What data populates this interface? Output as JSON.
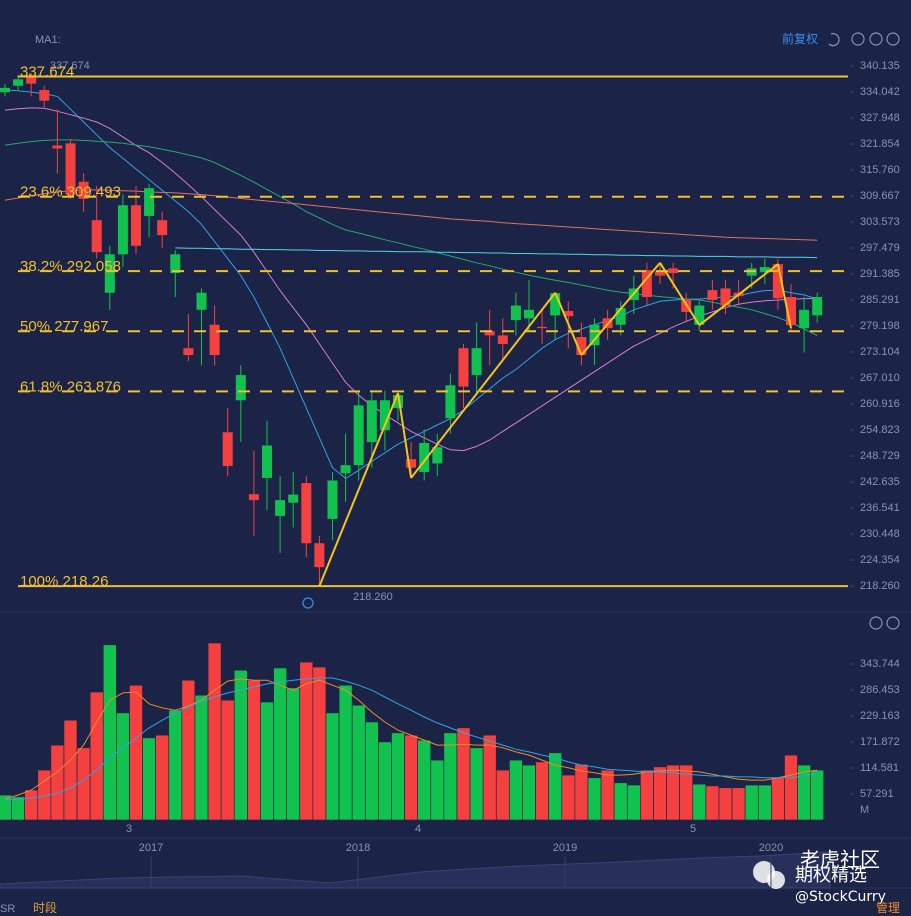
{
  "header": {
    "indicator": "MA1:",
    "price_ref": "337.674",
    "adjust": "前复权"
  },
  "footer": {
    "left": "SR",
    "session": "时段",
    "manage": "管理"
  },
  "watermark": {
    "line1": "老虎社区",
    "line2": "期权精选",
    "line3": "@StockCurry"
  },
  "x_axis": {
    "months": [
      "3",
      "4",
      "5"
    ],
    "years": [
      "2017",
      "2018",
      "2019",
      "2020"
    ]
  },
  "chart_data": [
    {
      "type": "candlestick",
      "up_color": "#12c24f",
      "down_color": "#f4413f",
      "ylim": [
        215,
        342.7
      ],
      "yticks": [
        340.135,
        334.042,
        327.948,
        321.854,
        {
          "value": 315.76,
          "label": "315.760"
        },
        309.667,
        303.573,
        297.479,
        291.385,
        285.291,
        279.198,
        273.104,
        {
          "value": 267.01,
          "label": "267.010"
        },
        260.916,
        254.823,
        248.729,
        242.635,
        236.541,
        230.448,
        224.354,
        {
          "value": 218.26,
          "label": "218.260"
        }
      ],
      "grid": false,
      "open": [
        334,
        335.5,
        337.6,
        334.5,
        321.5,
        322,
        313,
        304,
        287,
        296,
        307.5,
        305,
        304,
        291.6,
        274,
        283,
        279.5,
        254.3,
        261.8,
        239.8,
        243.6,
        234.7,
        237.8,
        242.4,
        228.3,
        234,
        244.7,
        246.6,
        252,
        254.8,
        260,
        248,
        245,
        247,
        257.6,
        274,
        267.7,
        278,
        277,
        280.6,
        281,
        279,
        281.7,
        282.7,
        276.6,
        274.7,
        281,
        279.5,
        285.3,
        292.3,
        292,
        292.7,
        285.3,
        279.5,
        287.6,
        288,
        287,
        291,
        291.8,
        293.7,
        286,
        278.7,
        281.7
      ],
      "high": [
        336,
        338,
        338.5,
        335.5,
        330,
        323,
        315,
        312,
        298,
        310,
        312,
        312.5,
        306,
        297,
        282,
        288,
        284,
        260,
        270,
        250,
        257,
        244,
        245,
        244,
        230,
        245,
        254,
        264,
        264,
        264,
        263.5,
        252,
        255,
        254,
        268,
        275,
        280,
        283,
        281,
        287,
        290,
        283,
        287,
        285,
        280,
        281,
        283,
        285,
        291,
        294,
        294,
        294,
        287,
        285,
        290,
        290,
        290,
        294,
        295,
        295,
        289,
        286,
        287
      ],
      "low": [
        333,
        334.5,
        333,
        330.5,
        315,
        309,
        306,
        295,
        283,
        293,
        296,
        300,
        297.5,
        286,
        271,
        270,
        270,
        244,
        252,
        230,
        236,
        226,
        232,
        225,
        218.26,
        229,
        238,
        243,
        246,
        250,
        257,
        243.6,
        243,
        244,
        254,
        260,
        263,
        270,
        271,
        277,
        278,
        275,
        276,
        274,
        270,
        270,
        276,
        277,
        282,
        284,
        289,
        288,
        280,
        278,
        283,
        282,
        284,
        288,
        289,
        283,
        278,
        273,
        280
      ],
      "close": [
        335,
        337,
        336,
        332,
        320.8,
        310,
        309,
        296.5,
        296,
        307.5,
        298,
        311.5,
        300.5,
        296,
        272.4,
        287,
        272.4,
        246.4,
        267.7,
        238.4,
        251.2,
        238.4,
        239.7,
        228.3,
        222.7,
        243,
        246.6,
        260.6,
        261.8,
        261.8,
        263,
        246,
        251.8,
        250.8,
        265.3,
        265,
        274,
        277,
        275,
        284,
        283,
        278.7,
        286.9,
        281.5,
        272.4,
        279.5,
        278.7,
        283.4,
        288,
        286,
        291,
        291.6,
        282.5,
        284,
        285.3,
        284,
        286.2,
        292.7,
        293,
        285.7,
        279.4,
        283,
        286
      ],
      "ma_lines": [
        {
          "color": "#2fa4e7",
          "values": [
            334.5,
            334.3,
            334,
            333.6,
            333,
            330,
            327,
            324,
            321,
            318.5,
            316,
            313.5,
            311,
            308.5,
            306,
            303,
            299,
            295,
            291,
            286,
            280,
            274,
            267,
            260,
            253,
            246,
            243.5,
            245.4,
            247.5,
            249.5,
            251.5,
            253,
            254.5,
            256,
            257.5,
            259.5,
            262,
            264.5,
            267,
            269,
            271.5,
            274,
            276,
            277.5,
            278.5,
            279.5,
            280.5,
            281.5,
            283,
            284,
            285,
            285.3,
            285.5,
            285.5,
            285.8,
            286,
            286.3,
            287,
            287.5,
            287.6,
            287,
            286.5,
            285.5
          ]
        },
        {
          "color": "#d77fd0",
          "values": [
            329.8,
            330.1,
            330.3,
            330.2,
            329.5,
            328.7,
            327.9,
            327,
            325.5,
            323.5,
            321.5,
            319.8,
            317.5,
            315,
            312.3,
            309.5,
            306.5,
            303.5,
            300.5,
            296.5,
            292,
            287.5,
            283.5,
            279.5,
            275,
            270.5,
            266,
            263,
            260.5,
            258.5,
            256.5,
            254.5,
            253,
            251.5,
            250.2,
            250,
            251,
            252.5,
            254.5,
            256.5,
            258.5,
            260.5,
            262.5,
            264.5,
            266.5,
            268.5,
            270.5,
            272.5,
            274.5,
            276,
            277.5,
            279,
            280.3,
            281.5,
            282.5,
            283.5,
            284.3,
            284.8,
            285.1,
            285.3,
            285.5,
            285.6,
            285.7
          ]
        },
        {
          "color": "#27a86c",
          "values": [
            321.6,
            322,
            322.4,
            322.7,
            322.8,
            322.8,
            322.7,
            322.5,
            322.3,
            322,
            321.6,
            321.2,
            320.6,
            320,
            319.3,
            318.6,
            317.5,
            316,
            314.5,
            312.9,
            311.2,
            309.5,
            307.8,
            306,
            304.5,
            303,
            301.7,
            301,
            300.2,
            299.4,
            298.7,
            297.9,
            297.2,
            296.4,
            295.6,
            294.8,
            294,
            293.3,
            292.5,
            291.8,
            291.1,
            290.5,
            289.9,
            289.4,
            288.8,
            288.2,
            287.6,
            287.1,
            286.8,
            286.4,
            286.1,
            285.8,
            285.5,
            285.3,
            284.8,
            284.2,
            283.6,
            283,
            282.1,
            281.2,
            280,
            278.5,
            277
          ]
        },
        {
          "color": "#e07064",
          "values": [
            308.7,
            309.2,
            309.7,
            310.2,
            310.6,
            310.9,
            311.1,
            311.1,
            311,
            310.9,
            310.8,
            310.6,
            310.5,
            310.4,
            310.2,
            310,
            309.7,
            309.4,
            309.1,
            308.8,
            308.5,
            308.2,
            307.9,
            307.6,
            307.3,
            307,
            306.7,
            306.4,
            306.1,
            305.8,
            305.5,
            305.2,
            304.9,
            304.6,
            304.3,
            304.1,
            303.9,
            303.7,
            303.4,
            303.2,
            303,
            302.8,
            302.6,
            302.4,
            302.2,
            302,
            301.8,
            301.6,
            301.4,
            301.2,
            301,
            300.8,
            300.6,
            300.4,
            300.2,
            300,
            299.9,
            299.8,
            299.7,
            299.6,
            299.5,
            299.4,
            299.3
          ]
        },
        {
          "color": "#4fd6e8",
          "values": [
            null,
            null,
            null,
            null,
            null,
            null,
            null,
            null,
            null,
            null,
            null,
            null,
            null,
            297.5,
            297.4,
            297.4,
            297.3,
            297.3,
            297.2,
            297.2,
            297.1,
            297.1,
            297,
            297,
            296.9,
            296.9,
            296.8,
            296.8,
            296.7,
            296.7,
            296.6,
            296.6,
            296.6,
            296.5,
            296.5,
            296.4,
            296.4,
            296.3,
            296.3,
            296.2,
            296.2,
            296.1,
            296.1,
            296,
            296,
            295.9,
            295.9,
            295.8,
            295.8,
            295.7,
            295.7,
            295.6,
            295.6,
            295.5,
            295.5,
            295.5,
            295.4,
            295.4,
            295.4,
            295.3,
            295.3,
            295.3,
            295.2
          ]
        }
      ],
      "levels_color": "#f0c030",
      "levels": [
        {
          "value": 337.674,
          "label": "337.674",
          "dashed": false
        },
        {
          "value": 309.493,
          "label": "23.6% 309.493",
          "dashed": true
        },
        {
          "value": 292.058,
          "label": "38.2% 292.058",
          "dashed": true
        },
        {
          "value": 277.967,
          "label": "50% 277.967",
          "dashed": true
        },
        {
          "value": 263.876,
          "label": "61.8% 263.876",
          "dashed": true
        },
        {
          "value": 218.26,
          "label": "100% 218.26",
          "dashed": false
        }
      ],
      "low_marker": {
        "value": 218.26,
        "label": "218.260"
      },
      "zigzag_color": "#f5c518",
      "zigzag": [
        null,
        null,
        null,
        null,
        null,
        null,
        null,
        null,
        null,
        null,
        null,
        null,
        null,
        null,
        null,
        null,
        null,
        null,
        null,
        null,
        null,
        null,
        null,
        null,
        218.26,
        null,
        null,
        null,
        null,
        null,
        263.5,
        243.6,
        null,
        null,
        null,
        null,
        null,
        null,
        null,
        null,
        null,
        null,
        287,
        null,
        272.4,
        null,
        null,
        null,
        null,
        null,
        294,
        null,
        null,
        279.4,
        null,
        null,
        null,
        null,
        null,
        293.7,
        278.7,
        null,
        null
      ]
    },
    {
      "type": "volume",
      "unit": "M",
      "ylim": [
        0,
        370
      ],
      "yticks": [
        343.744,
        286.453,
        229.163,
        171.872,
        114.581,
        57.291
      ],
      "values": [
        55,
        51,
        66,
        110,
        165,
        220,
        159,
        282,
        386,
        236,
        297,
        181,
        187,
        242,
        308,
        275,
        390,
        264,
        330,
        308,
        260,
        335,
        291,
        348,
        337,
        236,
        297,
        253,
        216,
        172,
        192,
        187,
        176,
        132,
        192,
        203,
        159,
        187,
        110,
        132,
        121,
        128,
        148,
        99,
        123,
        93,
        110,
        82,
        77,
        110,
        117,
        121,
        121,
        79,
        75,
        71,
        71,
        77,
        77,
        93,
        143,
        121,
        110
      ],
      "ma_lines": [
        {
          "color": "#f08a24",
          "values": [
            46,
            55,
            66,
            86,
            106,
            132,
            165,
            216,
            264,
            280,
            282,
            256,
            247,
            242,
            251,
            264,
            286,
            306,
            311,
            308,
            308,
            297,
            286,
            300,
            308,
            297,
            286,
            264,
            238,
            216,
            198,
            187,
            176,
            165,
            165,
            167,
            165,
            165,
            159,
            150,
            143,
            132,
            121,
            115,
            108,
            104,
            99,
            99,
            101,
            106,
            108,
            110,
            108,
            106,
            101,
            95,
            90,
            88,
            88,
            93,
            99,
            106,
            110
          ]
        },
        {
          "color": "#2fa4e7",
          "values": [
            44,
            46,
            48,
            53,
            59,
            71,
            88,
            110,
            137,
            159,
            181,
            203,
            220,
            236,
            249,
            262,
            271,
            280,
            286,
            293,
            300,
            304,
            308,
            311,
            313,
            313,
            306,
            297,
            286,
            271,
            256,
            242,
            227,
            214,
            203,
            192,
            183,
            174,
            165,
            156,
            150,
            143,
            137,
            128,
            121,
            117,
            112,
            110,
            108,
            106,
            106,
            104,
            101,
            99,
            97,
            97,
            95,
            95,
            93,
            93,
            93,
            97,
            104
          ]
        }
      ]
    }
  ]
}
